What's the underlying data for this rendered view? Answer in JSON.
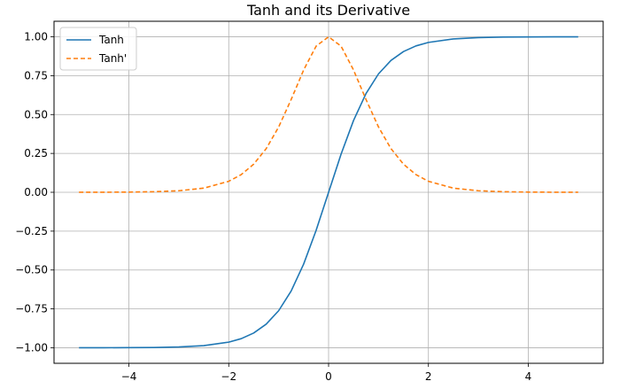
{
  "chart_data": {
    "type": "line",
    "title": "Tanh and its Derivative",
    "xlabel": "",
    "ylabel": "",
    "xlim": [
      -5.5,
      5.5
    ],
    "ylim": [
      -1.1,
      1.1
    ],
    "grid": true,
    "legend_position": "top-left",
    "x_ticks": [
      -4,
      -2,
      0,
      2,
      4
    ],
    "x_tick_labels": [
      "−4",
      "−2",
      "0",
      "2",
      "4"
    ],
    "y_ticks": [
      1.0,
      0.75,
      0.5,
      0.25,
      0.0,
      -0.25,
      -0.5,
      -0.75,
      -1.0
    ],
    "y_tick_labels": [
      "1.00",
      "0.75",
      "0.50",
      "0.25",
      "0.00",
      "−0.25",
      "−0.50",
      "−0.75",
      "−1.00"
    ],
    "series": [
      {
        "name": "Tanh",
        "color": "#1f77b4",
        "style": "solid",
        "x": [
          -5,
          -4.5,
          -4,
          -3.5,
          -3,
          -2.5,
          -2,
          -1.75,
          -1.5,
          -1.25,
          -1,
          -0.75,
          -0.5,
          -0.25,
          0,
          0.25,
          0.5,
          0.75,
          1,
          1.25,
          1.5,
          1.75,
          2,
          2.5,
          3,
          3.5,
          4,
          4.5,
          5
        ],
        "y": [
          -0.9999,
          -0.9998,
          -0.9993,
          -0.9982,
          -0.9951,
          -0.9866,
          -0.964,
          -0.9414,
          -0.9051,
          -0.8483,
          -0.7616,
          -0.6351,
          -0.4621,
          -0.2449,
          0,
          0.2449,
          0.4621,
          0.6351,
          0.7616,
          0.8483,
          0.9051,
          0.9414,
          0.964,
          0.9866,
          0.9951,
          0.9982,
          0.9993,
          0.9998,
          0.9999
        ]
      },
      {
        "name": "Tanh'",
        "color": "#ff7f0e",
        "style": "dashed",
        "x": [
          -5,
          -4.5,
          -4,
          -3.5,
          -3,
          -2.5,
          -2,
          -1.75,
          -1.5,
          -1.25,
          -1,
          -0.75,
          -0.5,
          -0.25,
          0,
          0.25,
          0.5,
          0.75,
          1,
          1.25,
          1.5,
          1.75,
          2,
          2.5,
          3,
          3.5,
          4,
          4.5,
          5
        ],
        "y": [
          0.0002,
          0.0005,
          0.0013,
          0.0036,
          0.0099,
          0.0266,
          0.0707,
          0.1138,
          0.1807,
          0.2805,
          0.42,
          0.5967,
          0.7864,
          0.94,
          1.0,
          0.94,
          0.7864,
          0.5967,
          0.42,
          0.2805,
          0.1807,
          0.1138,
          0.0707,
          0.0266,
          0.0099,
          0.0036,
          0.0013,
          0.0005,
          0.0002
        ]
      }
    ]
  }
}
